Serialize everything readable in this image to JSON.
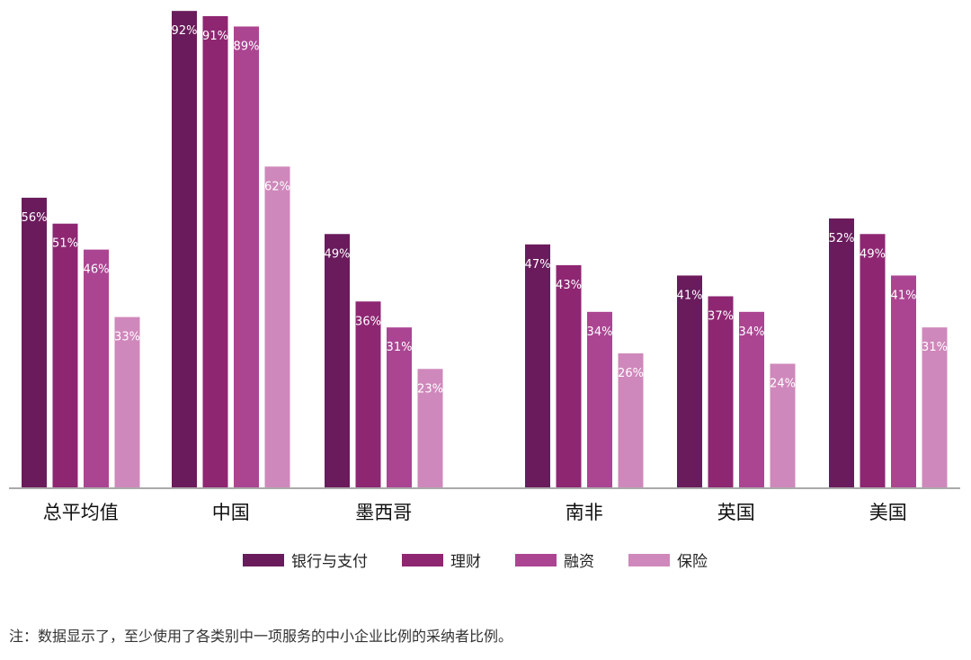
{
  "chart_data": {
    "type": "bar",
    "categories": [
      "总平均值",
      "中国",
      "墨西哥",
      "南非",
      "英国",
      "美国"
    ],
    "series": [
      {
        "name": "银行与支付",
        "values": [
          56,
          92,
          49,
          47,
          41,
          52
        ],
        "labels": [
          "56%",
          "92%",
          "49%",
          "47%",
          "41%",
          "52%"
        ]
      },
      {
        "name": "理财",
        "values": [
          51,
          91,
          36,
          43,
          37,
          49
        ],
        "labels": [
          "51%",
          "91%",
          "36%",
          "43%",
          "37%",
          "49%"
        ]
      },
      {
        "name": "融资",
        "values": [
          46,
          89,
          31,
          34,
          34,
          41
        ],
        "labels": [
          "46%",
          "89%",
          "31%",
          "34%",
          "34%",
          "41%"
        ]
      },
      {
        "name": "保险",
        "values": [
          33,
          62,
          23,
          26,
          24,
          31
        ],
        "labels": [
          "33%",
          "62%",
          "23%",
          "26%",
          "24%",
          "31%"
        ]
      }
    ],
    "colors": [
      "#6a1b5c",
      "#8e2672",
      "#ab4592",
      "#cf88bb"
    ],
    "ylim": [
      0,
      100
    ],
    "grid": false,
    "legend_position": "bottom"
  },
  "note": "注：数据显示了，至少使用了各类别中一项服务的中小企业比例的采纳者比例。"
}
